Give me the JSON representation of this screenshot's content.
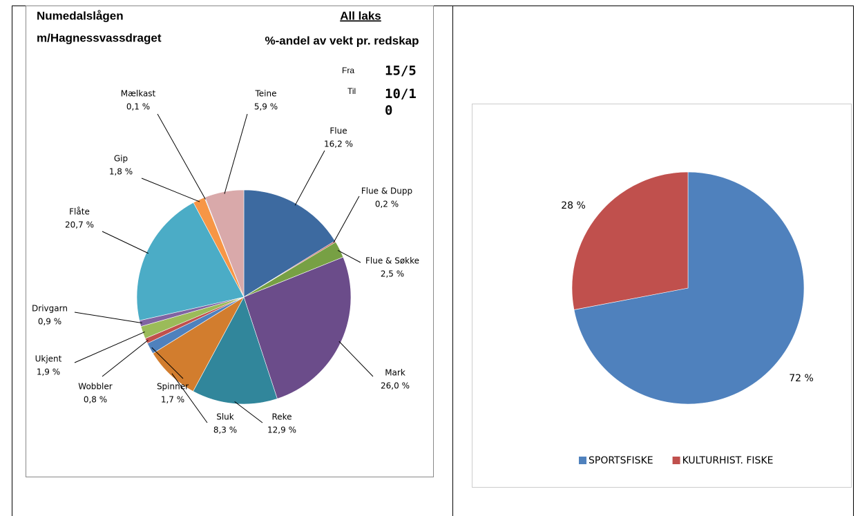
{
  "chart_data": [
    {
      "type": "pie",
      "title": "Numedalslågen",
      "subtitle": "m/Hagnessvassdraget",
      "heading": "All laks",
      "heading_sub": "%-andel av vekt pr. redskap",
      "from_label": "Fra",
      "from": "15/5",
      "to_label": "Til",
      "to": "10/10",
      "categories": [
        "Flue",
        "Flue & Dupp",
        "Flue & Søkke",
        "Mark",
        "Reke",
        "Sluk",
        "Spinner",
        "Wobbler",
        "Ukjent",
        "Drivgarn",
        "Flåte",
        "Gip",
        "Mælkast",
        "Teine"
      ],
      "values": [
        16.2,
        0.2,
        2.5,
        26.0,
        12.9,
        8.3,
        1.7,
        0.8,
        1.9,
        0.9,
        20.7,
        1.8,
        0.1,
        5.9
      ],
      "value_labels": [
        "16,2 %",
        "0,2 %",
        "2,5 %",
        "26,0 %",
        "12,9 %",
        "8,3 %",
        "1,7 %",
        "0,8 %",
        "1,9 %",
        "0,9 %",
        "20,7 %",
        "1,8 %",
        "0,1 %",
        "5,9 %"
      ],
      "colors": [
        "#3d6aa0",
        "#c0504d",
        "#77a044",
        "#6b4c8a",
        "#31869b",
        "#d27d2e",
        "#4f81bd",
        "#c0504d",
        "#9bbb59",
        "#8064a2",
        "#4bacc6",
        "#f79646",
        "#a9c3e0",
        "#d9a9aa"
      ]
    },
    {
      "type": "pie",
      "categories": [
        "SPORTSFISKE",
        "KULTURHIST. FISKE"
      ],
      "values": [
        72,
        28
      ],
      "value_labels": [
        "72 %",
        "28 %"
      ],
      "colors": [
        "#4f81bd",
        "#c0504d"
      ],
      "legend": "bottom"
    }
  ]
}
